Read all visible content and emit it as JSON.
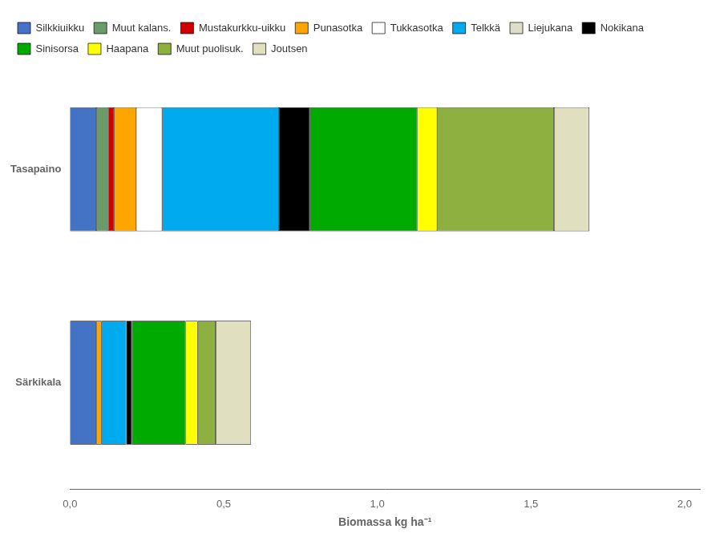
{
  "chart_data": {
    "type": "bar",
    "orientation": "horizontal",
    "stacked": true,
    "categories": [
      "Tasapaino",
      "Särkikala"
    ],
    "series": [
      {
        "name": "Silkkiuikku",
        "color": "#4472C4",
        "values": [
          0.085,
          0.085
        ]
      },
      {
        "name": "Muut kalans.",
        "color": "#6B9B6B",
        "values": [
          0.04,
          null
        ]
      },
      {
        "name": "Mustakurkku-uikku",
        "color": "#CC0000",
        "values": [
          0.018,
          null
        ]
      },
      {
        "name": "Punasotka",
        "color": "#FFA500",
        "values": [
          0.072,
          0.018
        ]
      },
      {
        "name": "Tukkasotka",
        "color": "#FFFFFF",
        "values": [
          0.085,
          null
        ]
      },
      {
        "name": "Telkkä",
        "color": "#00AAEE",
        "values": [
          0.38,
          0.08
        ]
      },
      {
        "name": "Liejukana",
        "color": "#DDDDC8",
        "values": [
          null,
          null
        ]
      },
      {
        "name": "Nokikana",
        "color": "#000000",
        "values": [
          0.1,
          0.018
        ]
      },
      {
        "name": "Sinisorsa",
        "color": "#00AA00",
        "values": [
          0.35,
          0.175
        ]
      },
      {
        "name": "Haapana",
        "color": "#FFFF00",
        "values": [
          0.065,
          0.04
        ]
      },
      {
        "name": "Muut puolisuk.",
        "color": "#8DB040",
        "values": [
          0.38,
          0.058
        ]
      },
      {
        "name": "Joutsen",
        "color": "#E0E0C0",
        "values": [
          0.115,
          0.115
        ]
      }
    ],
    "xlabel": "Biomassa kg ha⁻¹",
    "xlim": [
      0,
      2.05
    ],
    "xticks": [
      {
        "value": 0,
        "label": "0,0"
      },
      {
        "value": 0.5,
        "label": "0,5"
      },
      {
        "value": 1.0,
        "label": "1,0"
      },
      {
        "value": 1.5,
        "label": "1,5"
      },
      {
        "value": 2.0,
        "label": "2,0"
      }
    ],
    "grid": false,
    "legend": "upper left"
  }
}
